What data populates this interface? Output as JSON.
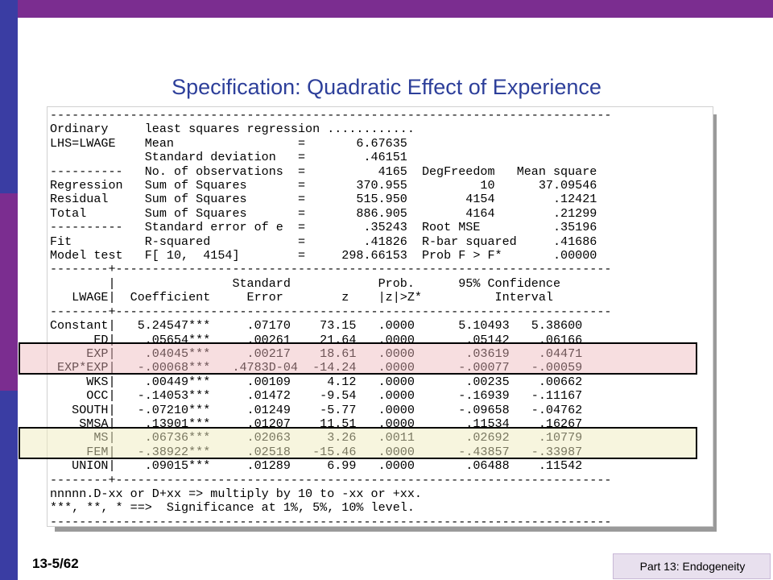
{
  "slide": {
    "title": "Specification: Quadratic Effect of Experience",
    "number": "13-5/62",
    "footer": "Part 13: Endogeneity"
  },
  "output_lines": [
    "-----------------------------------------------------------------------------",
    "Ordinary     least squares regression ............",
    "LHS=LWAGE    Mean                 =       6.67635",
    "             Standard deviation   =        .46151",
    "----------   No. of observations  =          4165  DegFreedom   Mean square",
    "Regression   Sum of Squares       =       370.955          10      37.09546",
    "Residual     Sum of Squares       =       515.950        4154        .12421",
    "Total        Sum of Squares       =       886.905        4164        .21299",
    "----------   Standard error of e  =        .35243  Root MSE          .35196",
    "Fit          R-squared            =        .41826  R-bar squared     .41686",
    "Model test   F[ 10,  4154]        =     298.66153  Prob F > F*       .00000",
    "--------+--------------------------------------------------------------------",
    "        |                Standard            Prob.      95% Confidence",
    "   LWAGE|  Coefficient     Error        z    |z|>Z*          Interval",
    "--------+--------------------------------------------------------------------",
    "Constant|   5.24547***     .07170    73.15   .0000      5.10493   5.38600",
    "      ED|    .05654***     .00261    21.64   .0000       .05142    .06166",
    "     EXP|    .04045***     .00217    18.61   .0000       .03619    .04471",
    " EXP*EXP|   -.00068***   .4783D-04  -14.24   .0000      -.00077   -.00059",
    "     WKS|    .00449***     .00109     4.12   .0000       .00235    .00662",
    "     OCC|   -.14053***     .01472    -9.54   .0000      -.16939   -.11167",
    "   SOUTH|   -.07210***     .01249    -5.77   .0000      -.09658   -.04762",
    "    SMSA|    .13901***     .01207    11.51   .0000       .11534    .16267",
    "      MS|    .06736***     .02063     3.26   .0011       .02692    .10779",
    "     FEM|   -.38922***     .02518   -15.46   .0000      -.43857   -.33987",
    "   UNION|    .09015***     .01289     6.99   .0000       .06488    .11542",
    "--------+--------------------------------------------------------------------",
    "nnnnn.D-xx or D+xx => multiply by 10 to -xx or +xx.",
    "***, **, * ==>  Significance at 1%, 5%, 10% level.",
    "-----------------------------------------------------------------------------"
  ],
  "colors": {
    "top_bar": "#7b2d90",
    "side_bar": "#3a3da3",
    "title": "#2d3f9a",
    "highlight_exp": "#eeb6ba",
    "highlight_ms": "#f0ecbe"
  }
}
